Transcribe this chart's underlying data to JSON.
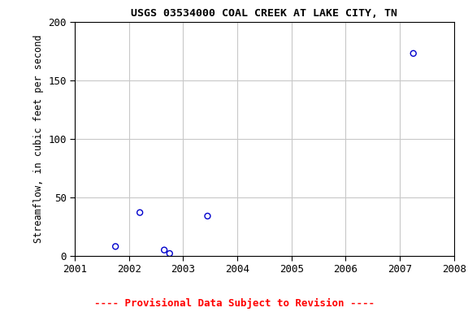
{
  "title": "USGS 03534000 COAL CREEK AT LAKE CITY, TN",
  "ylabel": "Streamflow, in cubic feet per second",
  "xlim": [
    2001,
    2008
  ],
  "ylim": [
    0,
    200
  ],
  "yticks": [
    0,
    50,
    100,
    150,
    200
  ],
  "xticks": [
    2001,
    2002,
    2003,
    2004,
    2005,
    2006,
    2007,
    2008
  ],
  "x_data": [
    2001.75,
    2002.2,
    2002.65,
    2002.75,
    2003.45,
    2007.25
  ],
  "y_data": [
    8,
    37,
    5,
    2,
    34,
    173
  ],
  "point_color": "#0000cc",
  "point_size": 25,
  "background_color": "#ffffff",
  "plot_bg_color": "#ffffff",
  "grid_color": "#c8c8c8",
  "title_fontsize": 9.5,
  "axis_label_fontsize": 8.5,
  "tick_fontsize": 9,
  "footer_text": "---- Provisional Data Subject to Revision ----",
  "footer_color": "#ff0000",
  "footer_fontsize": 9
}
